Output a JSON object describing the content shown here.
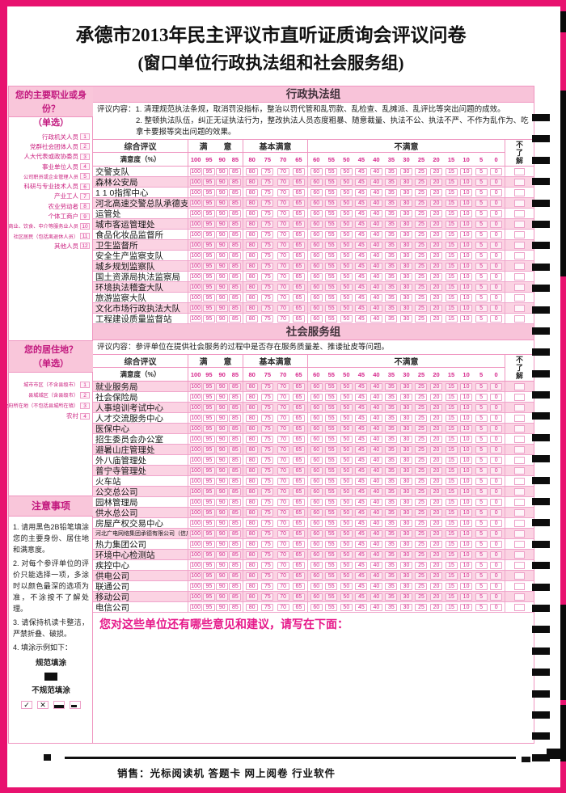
{
  "title": {
    "line1": "承德市2013年民主评议市直听证质询会评议问卷",
    "line2": "(窗口单位行政执法组和社会服务组)"
  },
  "sidebar": {
    "occupation": {
      "title": "您的主要职业或身份？",
      "subtitle": "（单选）",
      "options": [
        {
          "label": "行政机关人员",
          "num": "1"
        },
        {
          "label": "党群社会团体人员",
          "num": "2"
        },
        {
          "label": "人大代表或政协委员",
          "num": "3"
        },
        {
          "label": "事业单位人员",
          "num": "4"
        },
        {
          "label": "公司职员或企业管理人员",
          "num": "5"
        },
        {
          "label": "科研与专业技术人员",
          "num": "6"
        },
        {
          "label": "产业工人",
          "num": "7"
        },
        {
          "label": "农业劳动者",
          "num": "8"
        },
        {
          "label": "个体工商户",
          "num": "9"
        },
        {
          "label": "商业、饮食、中介等服务业人员",
          "num": "10"
        },
        {
          "label": "社区居民（包括离退休人员）",
          "num": "11"
        },
        {
          "label": "其他人员",
          "num": "12"
        }
      ]
    },
    "residence": {
      "title": "您的居住地？",
      "subtitle": "（单选）",
      "options": [
        {
          "label": "城市市区（不含县级市）",
          "num": "1"
        },
        {
          "label": "县城城区（含县级市）",
          "num": "2"
        },
        {
          "label": "乡镇政府所在地（不包括县城所在镇）",
          "num": "3"
        },
        {
          "label": "农村",
          "num": "4"
        }
      ]
    },
    "notes": {
      "title": "注意事项",
      "items": [
        "1. 请用黑色2B铅笔填涂您的主要身份、居住地和满意度。",
        "2. 对每个参评单位的评价只能选择一项，多涂时以颜色最深的选项为准，不涂按不了解处理。",
        "3. 请保持机读卡整洁，严禁折叠、破损。",
        "4. 填涂示例如下："
      ],
      "good_label": "规范填涂",
      "bad_label": "不规范填涂"
    }
  },
  "table": {
    "header": {
      "col1": "综合评议",
      "satisfied": "满　　意",
      "basic": "基本满意",
      "unsatisfied": "不满意",
      "unknown": "不了解",
      "satisfaction_label": "满意度（%）"
    },
    "scale": {
      "satisfied": [
        "100",
        "95",
        "90",
        "85"
      ],
      "basic": [
        "80",
        "75",
        "70",
        "65"
      ],
      "unsatisfied": [
        "60",
        "55",
        "50",
        "45",
        "40",
        "35",
        "30",
        "25",
        "20",
        "15",
        "10",
        "5",
        "0"
      ]
    }
  },
  "sections": [
    {
      "name": "行政执法组",
      "content_lines": [
        "评议内容：1. 清理规范执法条规，取消罚没指标，整治以罚代管和乱罚款、乱检查、乱摊派、乱评比等突出问题的成效。",
        "2. 整顿执法队伍，纠正无证执法行为，整改执法人员态度粗暴、随意裁量、执法不公、执法不严、不作为乱作为、吃拿卡要报等突出问题的效果。"
      ],
      "rows": [
        "交警支队",
        "森林公安局",
        "1 1 0指挥中心",
        "河北高速交警总队承德支队",
        "运管处",
        "城市客运管理处",
        "食品化妆品监督所",
        "卫生监督所",
        "安全生产监察支队",
        "城乡规划监察队",
        "国土资源局执法监察局",
        "环境执法稽查大队",
        "旅游监察大队",
        "文化市场行政执法大队",
        "工程建设质量监督站"
      ]
    },
    {
      "name": "社会服务组",
      "content_lines": [
        "评议内容：参评单位在提供社会服务的过程中是否存在服务质量差、推诿扯皮等问题。"
      ],
      "rows": [
        "就业服务局",
        "社会保险局",
        "人事培训考试中心",
        "人才交流服务中心",
        "医保中心",
        "招生委员会办公室",
        "避暑山庄管理处",
        "外八庙管理处",
        "普宁寺管理处",
        "火车站",
        "公交总公司",
        "园林管理局",
        "供水总公司",
        "房屋产权交易中心",
        "河北广电网络集团承德有限公司（信广联）",
        "热力集团公司",
        "环境中心检测站",
        "疾控中心",
        "供电公司",
        "联通公司",
        "移动公司",
        "电信公司"
      ]
    }
  ],
  "comment_prompt": "您对这些单位还有哪些意见和建议，请写在下面：",
  "footer": "销售：光标阅读机 答题卡 网上阅卷 行业软件",
  "colors": {
    "frame": "#e8126f",
    "pink_header_bg": "#f9c6da",
    "pink_row_bg": "#fbd3e3",
    "pink_border": "#ef95c0",
    "magenta_text": "#d6278c",
    "prompt_text": "#e6198a",
    "mark_black": "#0d0d0d"
  }
}
